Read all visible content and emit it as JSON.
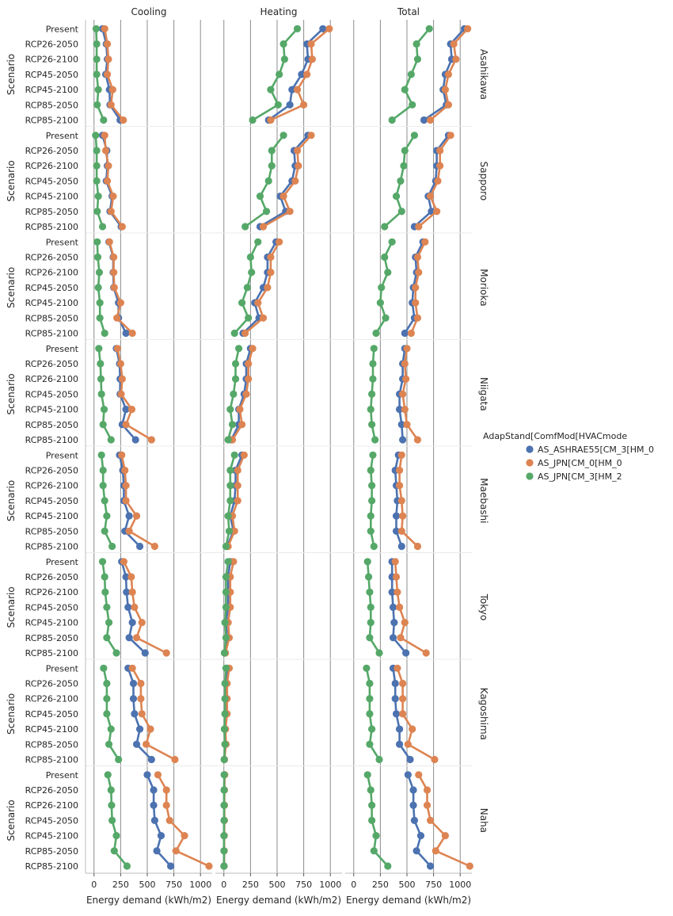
{
  "chart_data": {
    "type": "line",
    "x_label": "Energy demand (kWh/m2)",
    "y_label": "Scenario",
    "columns": [
      "Cooling",
      "Heating",
      "Total"
    ],
    "rows": [
      "Asahikawa",
      "Sapporo",
      "Morioka",
      "Niigata",
      "Maebashi",
      "Tokyo",
      "Kagoshima",
      "Naha"
    ],
    "scenarios": [
      "Present",
      "RCP26-2050",
      "RCP26-2100",
      "RCP45-2050",
      "RCP45-2100",
      "RCP85-2050",
      "RCP85-2100"
    ],
    "x_ticks": [
      0,
      250,
      500,
      750,
      1000
    ],
    "x_range": [
      -80,
      1110
    ],
    "legend": {
      "title": "AdapStand[ComfMod[HVACmode",
      "placement": "center-right",
      "entries": [
        {
          "name": "AS_ASHRAE55[CM_3[HM_0",
          "color": "#4c72b0"
        },
        {
          "name": "AS_JPN[CM_0[HM_0",
          "color": "#dd8452"
        },
        {
          "name": "AS_JPN[CM_3[HM_2",
          "color": "#55a868"
        }
      ]
    },
    "vertical_gridlines": true,
    "series_values": {
      "Asahikawa": {
        "Cooling": [
          [
            80,
            115,
            125,
            110,
            145,
            150,
            245
          ],
          [
            100,
            125,
            135,
            125,
            175,
            160,
            275
          ],
          [
            20,
            25,
            25,
            25,
            40,
            30,
            90
          ]
        ],
        "Heating": [
          [
            930,
            780,
            790,
            730,
            640,
            620,
            420
          ],
          [
            990,
            820,
            830,
            780,
            690,
            750,
            440
          ],
          [
            690,
            560,
            570,
            520,
            440,
            510,
            270
          ]
        ],
        "Total": [
          [
            1040,
            910,
            920,
            860,
            840,
            870,
            660
          ],
          [
            1070,
            940,
            960,
            890,
            860,
            890,
            720
          ],
          [
            710,
            590,
            600,
            540,
            480,
            550,
            360
          ]
        ]
      },
      "Sapporo": {
        "Cooling": [
          [
            80,
            120,
            125,
            115,
            170,
            150,
            255
          ],
          [
            100,
            110,
            135,
            125,
            180,
            160,
            265
          ],
          [
            15,
            25,
            25,
            25,
            40,
            30,
            80
          ]
        ],
        "Heating": [
          [
            790,
            660,
            670,
            640,
            530,
            580,
            340
          ],
          [
            820,
            690,
            700,
            670,
            560,
            620,
            370
          ],
          [
            560,
            450,
            450,
            420,
            340,
            400,
            200
          ]
        ],
        "Total": [
          [
            890,
            780,
            780,
            770,
            700,
            730,
            570
          ],
          [
            910,
            810,
            810,
            790,
            720,
            780,
            610
          ],
          [
            570,
            480,
            470,
            440,
            400,
            450,
            290
          ]
        ]
      },
      "Morioka": {
        "Cooling": [
          [
            140,
            180,
            180,
            185,
            230,
            230,
            300
          ],
          [
            145,
            185,
            185,
            190,
            250,
            215,
            360
          ],
          [
            30,
            35,
            50,
            40,
            55,
            55,
            100
          ]
        ],
        "Heating": [
          [
            490,
            410,
            410,
            370,
            290,
            330,
            180
          ],
          [
            520,
            440,
            440,
            410,
            320,
            370,
            200
          ],
          [
            320,
            250,
            260,
            220,
            170,
            230,
            100
          ]
        ],
        "Total": [
          [
            650,
            580,
            590,
            560,
            550,
            570,
            480
          ],
          [
            670,
            600,
            610,
            580,
            580,
            600,
            540
          ],
          [
            360,
            290,
            320,
            260,
            250,
            300,
            210
          ]
        ]
      },
      "Niigata": {
        "Cooling": [
          [
            210,
            240,
            245,
            245,
            300,
            265,
            390
          ],
          [
            220,
            250,
            265,
            255,
            355,
            300,
            540
          ],
          [
            45,
            60,
            65,
            70,
            95,
            85,
            160
          ]
        ],
        "Heating": [
          [
            250,
            210,
            210,
            190,
            140,
            140,
            70
          ],
          [
            270,
            230,
            230,
            210,
            150,
            170,
            80
          ],
          [
            140,
            110,
            110,
            90,
            60,
            80,
            40
          ]
        ],
        "Total": [
          [
            480,
            460,
            460,
            430,
            430,
            450,
            460
          ],
          [
            500,
            480,
            490,
            460,
            480,
            500,
            600
          ],
          [
            190,
            180,
            180,
            170,
            160,
            170,
            200
          ]
        ]
      },
      "Maebashi": {
        "Cooling": [
          [
            240,
            270,
            280,
            280,
            330,
            290,
            430
          ],
          [
            260,
            290,
            300,
            300,
            400,
            330,
            570
          ],
          [
            70,
            85,
            85,
            100,
            120,
            100,
            170
          ]
        ],
        "Heating": [
          [
            170,
            110,
            110,
            100,
            60,
            90,
            30
          ],
          [
            190,
            130,
            130,
            130,
            80,
            100,
            40
          ],
          [
            100,
            60,
            60,
            60,
            40,
            50,
            20
          ]
        ],
        "Total": [
          [
            420,
            390,
            400,
            410,
            400,
            400,
            450
          ],
          [
            450,
            430,
            430,
            450,
            460,
            450,
            600
          ],
          [
            180,
            160,
            170,
            170,
            160,
            160,
            190
          ]
        ]
      },
      "Tokyo": {
        "Cooling": [
          [
            260,
            300,
            305,
            320,
            360,
            330,
            480
          ],
          [
            280,
            350,
            360,
            380,
            450,
            400,
            680
          ],
          [
            80,
            100,
            105,
            120,
            140,
            120,
            210
          ]
        ],
        "Heating": [
          [
            60,
            40,
            40,
            40,
            20,
            30,
            10
          ],
          [
            90,
            60,
            60,
            60,
            40,
            50,
            15
          ],
          [
            40,
            20,
            20,
            20,
            10,
            20,
            5
          ]
        ],
        "Total": [
          [
            360,
            360,
            360,
            370,
            380,
            370,
            490
          ],
          [
            390,
            400,
            410,
            430,
            480,
            440,
            680
          ],
          [
            130,
            140,
            150,
            160,
            160,
            150,
            240
          ]
        ]
      },
      "Kagoshima": {
        "Cooling": [
          [
            320,
            370,
            370,
            380,
            430,
            400,
            540
          ],
          [
            360,
            440,
            440,
            450,
            530,
            490,
            760
          ],
          [
            90,
            120,
            120,
            120,
            160,
            140,
            230
          ]
        ],
        "Heating": [
          [
            30,
            20,
            20,
            20,
            10,
            15,
            5
          ],
          [
            50,
            30,
            30,
            30,
            15,
            20,
            5
          ],
          [
            20,
            10,
            10,
            10,
            5,
            10,
            3
          ]
        ],
        "Total": [
          [
            370,
            390,
            390,
            400,
            430,
            430,
            530
          ],
          [
            410,
            460,
            460,
            460,
            550,
            510,
            760
          ],
          [
            120,
            150,
            150,
            150,
            170,
            150,
            240
          ]
        ]
      },
      "Naha": {
        "Cooling": [
          [
            500,
            560,
            560,
            570,
            630,
            590,
            720
          ],
          [
            600,
            680,
            680,
            710,
            850,
            770,
            1080
          ],
          [
            130,
            160,
            165,
            170,
            210,
            190,
            310
          ]
        ],
        "Heating": [
          [
            5,
            3,
            3,
            3,
            2,
            2,
            1
          ],
          [
            8,
            5,
            5,
            5,
            3,
            3,
            2
          ],
          [
            3,
            2,
            2,
            2,
            1,
            1,
            1
          ]
        ],
        "Total": [
          [
            510,
            560,
            560,
            570,
            630,
            590,
            720
          ],
          [
            610,
            690,
            690,
            720,
            860,
            770,
            1090
          ],
          [
            130,
            160,
            170,
            170,
            210,
            190,
            320
          ]
        ]
      }
    }
  }
}
